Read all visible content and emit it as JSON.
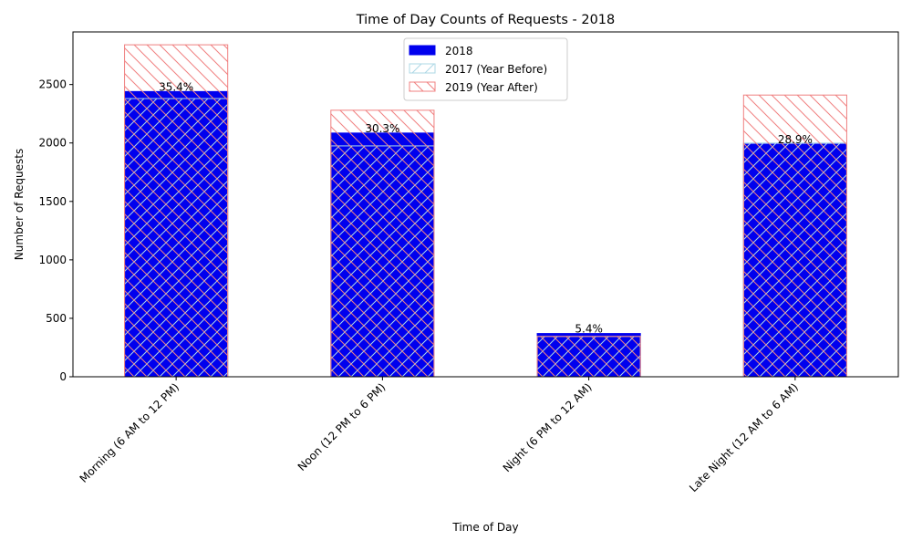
{
  "chart_data": {
    "type": "bar",
    "title": "Time of Day Counts of Requests - 2018",
    "xlabel": "Time of Day",
    "ylabel": "Number of Requests",
    "categories": [
      "Morning (6 AM to 12 PM)",
      "Noon (12 PM to 6 PM)",
      "Night (6 PM to 12 AM)",
      "Late Night (12 AM to 6 AM)"
    ],
    "ylim": [
      0,
      2950
    ],
    "yticks": [
      0,
      500,
      1000,
      1500,
      2000,
      2500
    ],
    "legend_position": "top-center",
    "grid": false,
    "series": [
      {
        "name": "2018",
        "values": [
          2440,
          2085,
          370,
          1990
        ],
        "color": "#0000ee",
        "style": "solid"
      },
      {
        "name": "2017 (Year Before)",
        "values": [
          2380,
          1975,
          345,
          2000
        ],
        "color": "#add8e6",
        "style": "hatch-forward"
      },
      {
        "name": "2019 (Year After)",
        "values": [
          2840,
          2280,
          345,
          2410
        ],
        "color": "#f08080",
        "style": "hatch-backward"
      }
    ],
    "bar_labels": [
      "35.4%",
      "30.3%",
      "5.4%",
      "28.9%"
    ]
  }
}
